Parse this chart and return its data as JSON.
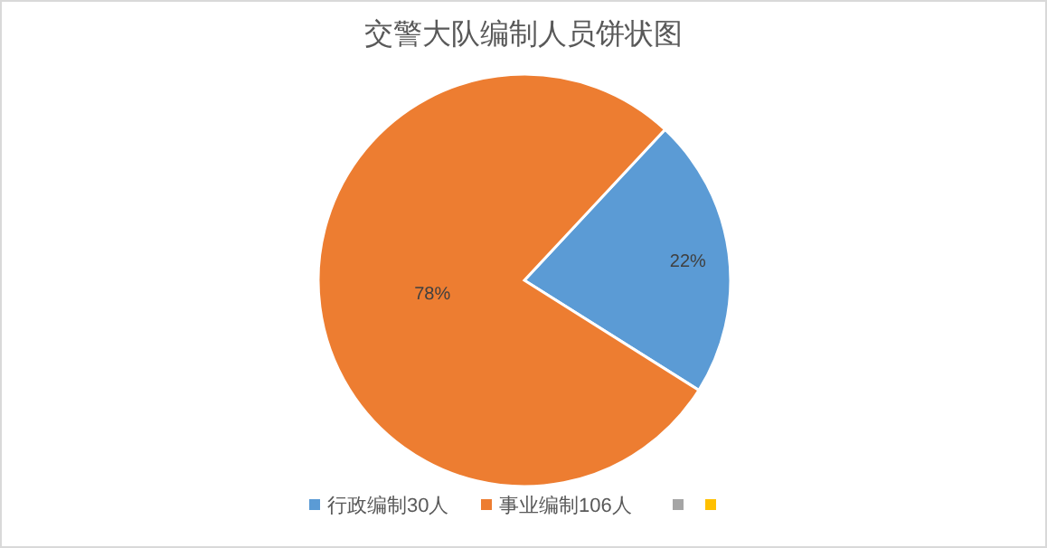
{
  "chart_data": {
    "type": "pie",
    "title": "交警大队编制人员饼状图",
    "categories": [
      "行政编制30人",
      "事业编制106人",
      null,
      null
    ],
    "values": [
      22,
      78,
      0,
      0
    ],
    "colors": [
      "#5b9bd5",
      "#ed7d31",
      "#a5a5a5",
      "#ffc000"
    ],
    "value_labels": [
      "22%",
      "78%",
      null,
      null
    ],
    "legend": "bottom"
  }
}
